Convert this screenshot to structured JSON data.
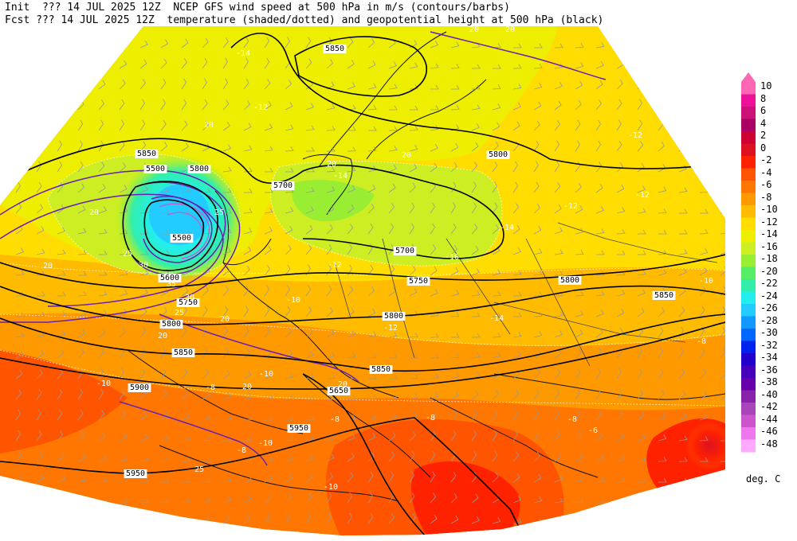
{
  "header": {
    "line1": "Init  ??? 14 JUL 2025 12Z  NCEP GFS wind speed at 500 hPa in m/s (contours/barbs)",
    "line2": "Fcst ??? 14 JUL 2025 12Z  temperature (shaded/dotted) and geopotential height at 500 hPa (black)"
  },
  "colorbar": {
    "units": "deg. C",
    "levels": [
      "10",
      "8",
      "6",
      "4",
      "2",
      "0",
      "-2",
      "-4",
      "-6",
      "-8",
      "-10",
      "-12",
      "-14",
      "-16",
      "-18",
      "-20",
      "-22",
      "-24",
      "-26",
      "-28",
      "-30",
      "-32",
      "-34",
      "-36",
      "-38",
      "-40",
      "-42",
      "-44",
      "-46",
      "-48"
    ],
    "colors": [
      "#ff66b3",
      "#ee1199",
      "#cc1177",
      "#aa0066",
      "#cc0033",
      "#dd1122",
      "#ff2200",
      "#ff5500",
      "#ff7700",
      "#ff9900",
      "#ffbb00",
      "#ffdd00",
      "#eeee00",
      "#ccee22",
      "#99ee33",
      "#55ee66",
      "#33eeaa",
      "#22eeee",
      "#22ccff",
      "#1199ff",
      "#0066ff",
      "#0022ee",
      "#2200cc",
      "#4400bb",
      "#6600aa",
      "#8822aa",
      "#aa44bb",
      "#cc55cc",
      "#ee77ee",
      "#ffaaff"
    ]
  },
  "height_labels": [
    "5850",
    "5800",
    "5700",
    "5700",
    "5750",
    "5800",
    "5850",
    "5800",
    "5850",
    "5900",
    "5950",
    "5950",
    "5850",
    "5800",
    "5500",
    "5600",
    "5750",
    "5800",
    "5850",
    "5650",
    "5500"
  ],
  "temp_labels": [
    "-14",
    "-12",
    "-12",
    "-14",
    "-14",
    "-12",
    "-16",
    "-12",
    "-10",
    "-12",
    "-14",
    "-10",
    "-12",
    "-8",
    "-10",
    "-8",
    "-10",
    "-10",
    "-8",
    "-8",
    "-8",
    "-8",
    "-6",
    "-10"
  ],
  "wind_labels": [
    "20",
    "20",
    "25",
    "20",
    "25",
    "30",
    "35",
    "30",
    "25",
    "20",
    "20",
    "25",
    "20",
    "20",
    "20",
    "20",
    "20",
    "20"
  ]
}
